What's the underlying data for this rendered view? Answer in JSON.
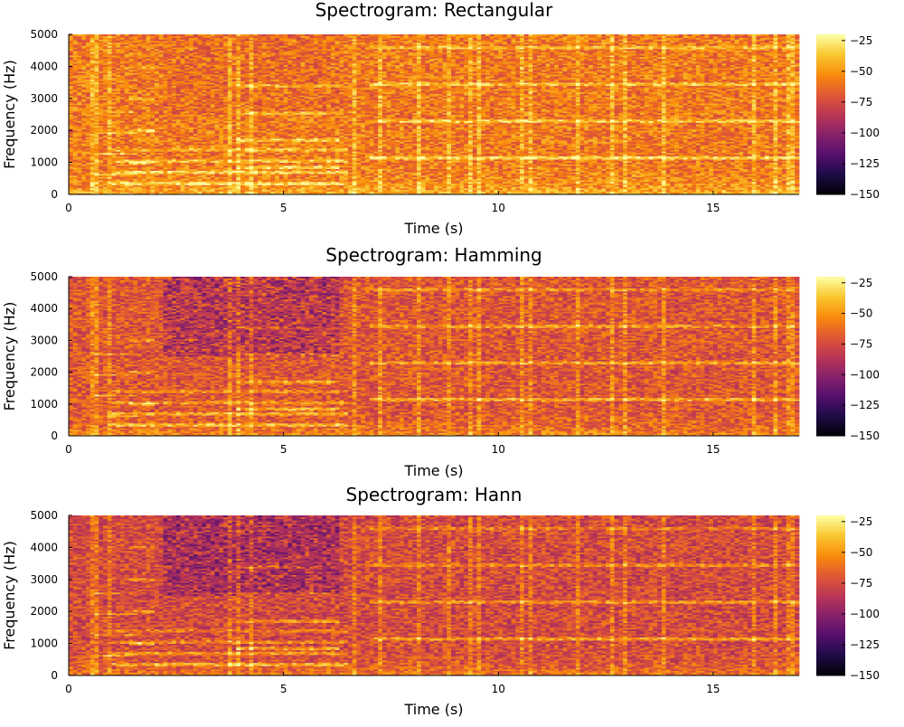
{
  "colors": {
    "colormap": "inferno",
    "background": "#ffffff",
    "axis": "#000000"
  },
  "colorbar": {
    "min": -150,
    "max": -20,
    "ticks": [
      -25,
      -50,
      -75,
      -100,
      -125,
      -150
    ],
    "tick_labels": [
      "−25",
      "−50",
      "−75",
      "−100",
      "−125",
      "−150"
    ]
  },
  "chart_data": [
    {
      "type": "heatmap",
      "title": "Spectrogram: Rectangular",
      "xlabel": "Time (s)",
      "ylabel": "Frequency (Hz)",
      "xlim": [
        0,
        17
      ],
      "ylim": [
        0,
        5000
      ],
      "xticks": [
        0,
        5,
        10,
        15
      ],
      "xtick_labels": [
        "0",
        "5",
        "10",
        "15"
      ],
      "yticks": [
        0,
        1000,
        2000,
        3000,
        4000,
        5000
      ],
      "ytick_labels": [
        "0",
        "1000",
        "2000",
        "3000",
        "4000",
        "5000"
      ],
      "z_range_db": [
        -150,
        -20
      ],
      "z_mean_db": -58,
      "time_bins": 170,
      "freq_bins": 100,
      "notes_hz": [
        {
          "f": 640,
          "t0": 0.6,
          "t1": 1.6
        },
        {
          "f": 1000,
          "t0": 1.4,
          "t1": 2.0
        },
        {
          "f": 850,
          "t0": 3.9,
          "t1": 6.3
        },
        {
          "f": 1150,
          "t0": 7.0,
          "t1": 17.0
        },
        {
          "f": 350,
          "t0": 1.0,
          "t1": 6.5
        }
      ]
    },
    {
      "type": "heatmap",
      "title": "Spectrogram: Hamming",
      "xlabel": "Time (s)",
      "ylabel": "Frequency (Hz)",
      "xlim": [
        0,
        17
      ],
      "ylim": [
        0,
        5000
      ],
      "xticks": [
        0,
        5,
        10,
        15
      ],
      "xtick_labels": [
        "0",
        "5",
        "10",
        "15"
      ],
      "yticks": [
        0,
        1000,
        2000,
        3000,
        4000,
        5000
      ],
      "ytick_labels": [
        "0",
        "1000",
        "2000",
        "3000",
        "4000",
        "5000"
      ],
      "z_range_db": [
        -150,
        -20
      ],
      "z_mean_db": -70,
      "time_bins": 170,
      "freq_bins": 100,
      "notes_hz": [
        {
          "f": 640,
          "t0": 0.6,
          "t1": 1.6
        },
        {
          "f": 1000,
          "t0": 1.4,
          "t1": 2.0
        },
        {
          "f": 850,
          "t0": 3.9,
          "t1": 6.3
        },
        {
          "f": 1150,
          "t0": 7.0,
          "t1": 17.0
        },
        {
          "f": 350,
          "t0": 1.0,
          "t1": 6.5
        }
      ]
    },
    {
      "type": "heatmap",
      "title": "Spectrogram: Hann",
      "xlabel": "Time (s)",
      "ylabel": "Frequency (Hz)",
      "xlim": [
        0,
        17
      ],
      "ylim": [
        0,
        5000
      ],
      "xticks": [
        0,
        5,
        10,
        15
      ],
      "xtick_labels": [
        "0",
        "5",
        "10",
        "15"
      ],
      "yticks": [
        0,
        1000,
        2000,
        3000,
        4000,
        5000
      ],
      "ytick_labels": [
        "0",
        "1000",
        "2000",
        "3000",
        "4000",
        "5000"
      ],
      "z_range_db": [
        -150,
        -20
      ],
      "z_mean_db": -75,
      "time_bins": 170,
      "freq_bins": 100,
      "notes_hz": [
        {
          "f": 640,
          "t0": 0.6,
          "t1": 1.6
        },
        {
          "f": 1000,
          "t0": 1.4,
          "t1": 2.0
        },
        {
          "f": 850,
          "t0": 3.9,
          "t1": 6.3
        },
        {
          "f": 1150,
          "t0": 7.0,
          "t1": 17.0
        },
        {
          "f": 350,
          "t0": 1.0,
          "t1": 6.5
        }
      ]
    }
  ]
}
